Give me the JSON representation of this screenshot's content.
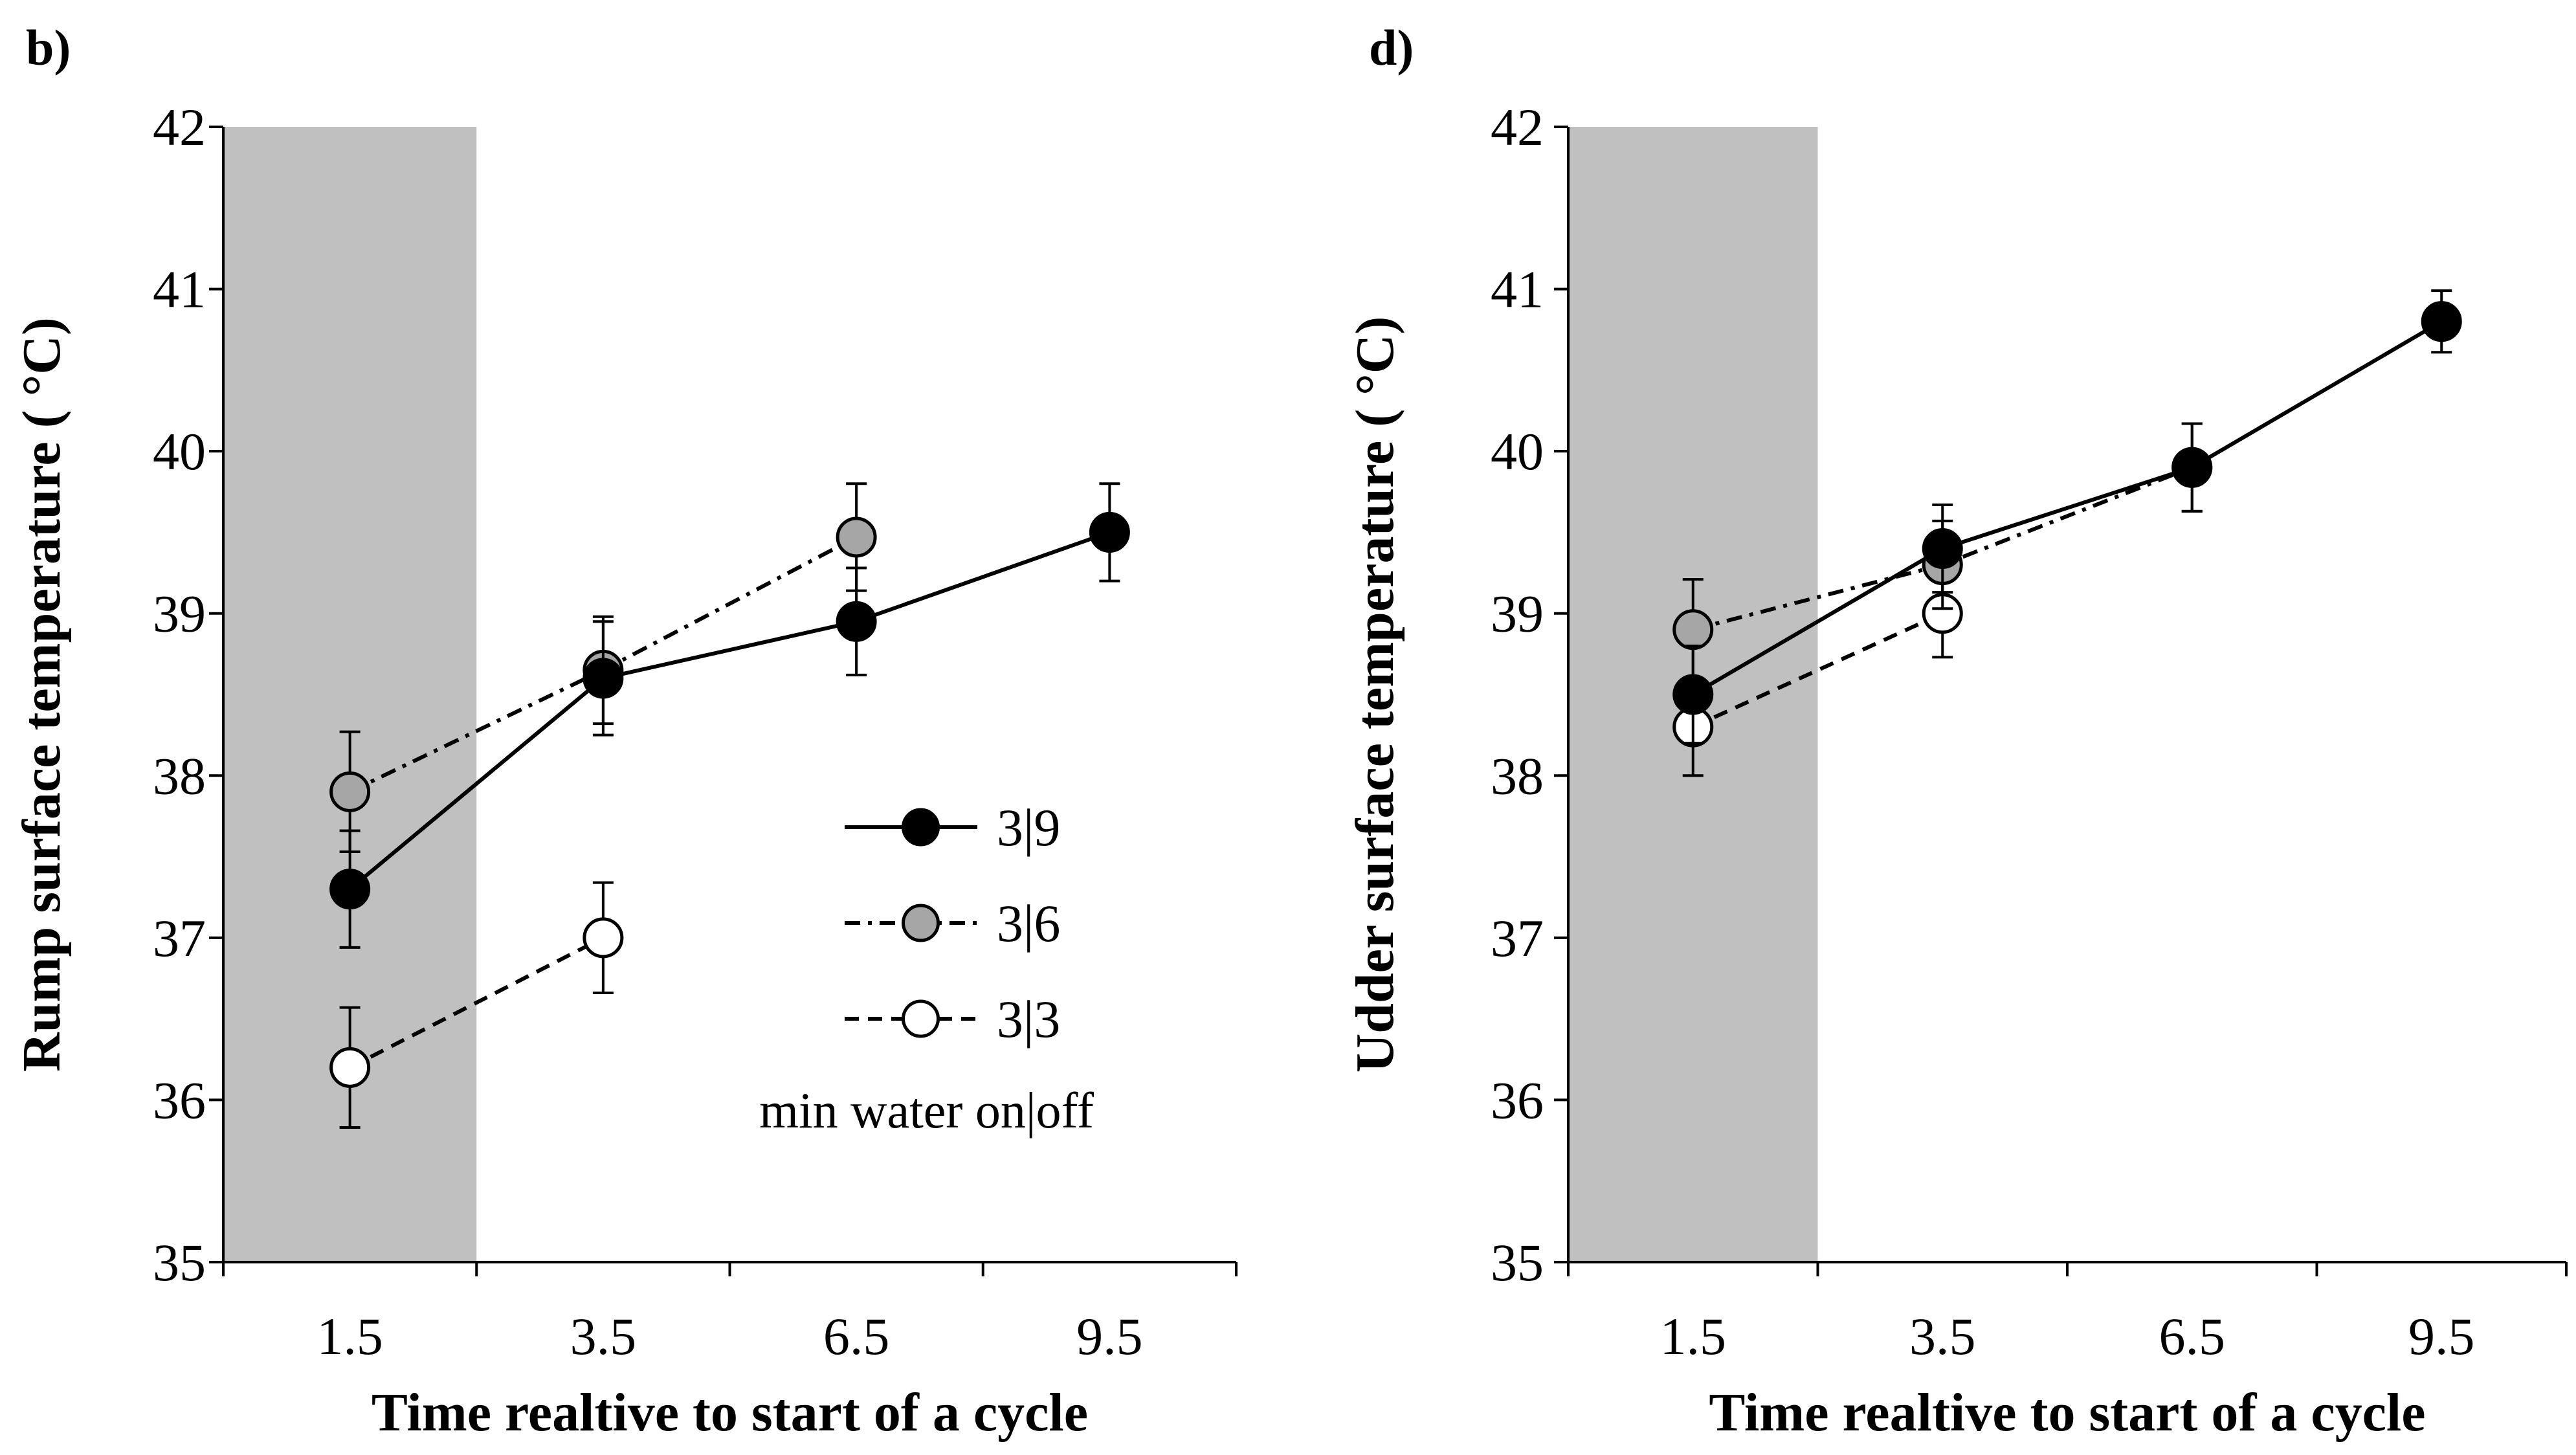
{
  "chart_data": [
    {
      "type": "line",
      "panel_label": "b)",
      "xlabel": "Time realtive to start of a cycle",
      "ylabel": "Rump surface temperature ( °C)",
      "categories": [
        "1.5",
        "3.5",
        "6.5",
        "9.5"
      ],
      "ylim": [
        35,
        42
      ],
      "yticks": [
        "35",
        "36",
        "37",
        "38",
        "39",
        "40",
        "41",
        "42"
      ],
      "shaded_region": {
        "from_category_index": -0.5,
        "to_category_index": 0.5,
        "color": "#c0c0c0"
      },
      "series": [
        {
          "name": "3|9",
          "values": [
            37.3,
            38.6,
            38.95,
            39.5
          ],
          "errors": [
            0.36,
            0.35,
            0.33,
            0.3
          ],
          "marker_fill": "#000000",
          "line_style": "solid"
        },
        {
          "name": "3|6",
          "values": [
            37.9,
            38.65,
            39.47,
            null
          ],
          "errors": [
            0.37,
            0.33,
            0.33,
            null
          ],
          "marker_fill": "#a6a6a6",
          "line_style": "dashdot"
        },
        {
          "name": "3|3",
          "values": [
            36.2,
            37.0,
            null,
            null
          ],
          "errors": [
            0.37,
            0.34,
            null,
            null
          ],
          "marker_fill": "#ffffff",
          "line_style": "dashed"
        }
      ],
      "legend": {
        "entries": [
          "3|9",
          "3|6",
          "3|3"
        ],
        "note": "min water on|off",
        "placement": "center-right"
      }
    },
    {
      "type": "line",
      "panel_label": "d)",
      "xlabel": "Time realtive to start of a cycle",
      "ylabel": "Udder surface temperature ( °C)",
      "categories": [
        "1.5",
        "3.5",
        "6.5",
        "9.5"
      ],
      "ylim": [
        35,
        42
      ],
      "yticks": [
        "35",
        "36",
        "37",
        "38",
        "39",
        "40",
        "41",
        "42"
      ],
      "shaded_region": {
        "from_category_index": -0.5,
        "to_category_index": 0.5,
        "color": "#c0c0c0"
      },
      "series": [
        {
          "name": "3|9",
          "values": [
            38.5,
            39.4,
            39.9,
            40.8
          ],
          "errors": [
            0.3,
            0.27,
            0.27,
            0.19
          ],
          "marker_fill": "#000000",
          "line_style": "solid"
        },
        {
          "name": "3|6",
          "values": [
            38.9,
            39.3,
            39.9,
            null
          ],
          "errors": [
            0.31,
            0.27,
            0.27,
            null
          ],
          "marker_fill": "#a6a6a6",
          "line_style": "dashdot"
        },
        {
          "name": "3|3",
          "values": [
            38.3,
            39.0,
            null,
            null
          ],
          "errors": [
            0.3,
            0.27,
            null,
            null
          ],
          "marker_fill": "#ffffff",
          "line_style": "dashed"
        }
      ]
    }
  ]
}
